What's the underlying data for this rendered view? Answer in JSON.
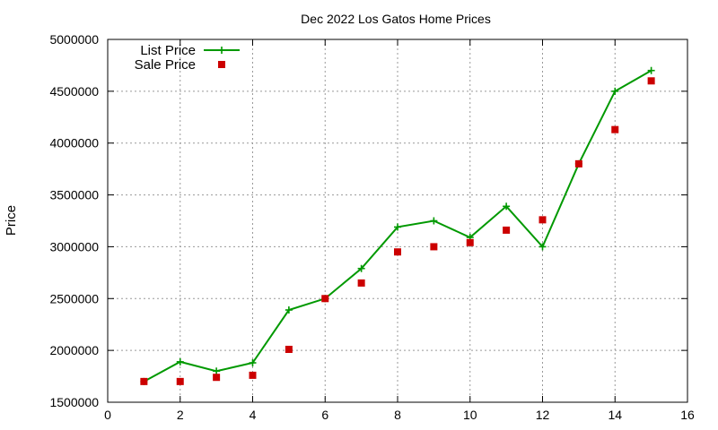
{
  "chart_data": {
    "type": "line",
    "title": "Dec 2022 Los Gatos Home Prices",
    "xlabel": "",
    "ylabel": "Price",
    "xlim": [
      0,
      16
    ],
    "ylim": [
      1500000,
      5000000
    ],
    "x_ticks": [
      0,
      2,
      4,
      6,
      8,
      10,
      12,
      14,
      16
    ],
    "y_ticks": [
      1500000,
      2000000,
      2500000,
      3000000,
      3500000,
      4000000,
      4500000,
      5000000
    ],
    "grid": true,
    "legend_position": "top-left",
    "series": [
      {
        "name": "List Price",
        "style": "line-with-plus-markers",
        "color": "#009900",
        "points": [
          [
            1,
            1700000
          ],
          [
            2,
            1890000
          ],
          [
            3,
            1800000
          ],
          [
            4,
            1880000
          ],
          [
            5,
            2390000
          ],
          [
            6,
            2500000
          ],
          [
            7,
            2790000
          ],
          [
            8,
            3190000
          ],
          [
            9,
            3250000
          ],
          [
            10,
            3090000
          ],
          [
            11,
            3390000
          ],
          [
            12,
            3000000
          ],
          [
            13,
            3800000
          ],
          [
            14,
            4500000
          ],
          [
            15,
            4700000
          ]
        ]
      },
      {
        "name": "Sale Price",
        "style": "square-markers",
        "color": "#cc0000",
        "points": [
          [
            1,
            1700000
          ],
          [
            2,
            1700000
          ],
          [
            3,
            1740000
          ],
          [
            4,
            1760000
          ],
          [
            5,
            2010000
          ],
          [
            6,
            2500000
          ],
          [
            7,
            2650000
          ],
          [
            8,
            2950000
          ],
          [
            9,
            3000000
          ],
          [
            10,
            3040000
          ],
          [
            11,
            3160000
          ],
          [
            12,
            3260000
          ],
          [
            13,
            3800000
          ],
          [
            14,
            4130000
          ],
          [
            15,
            4600000
          ]
        ]
      }
    ]
  }
}
